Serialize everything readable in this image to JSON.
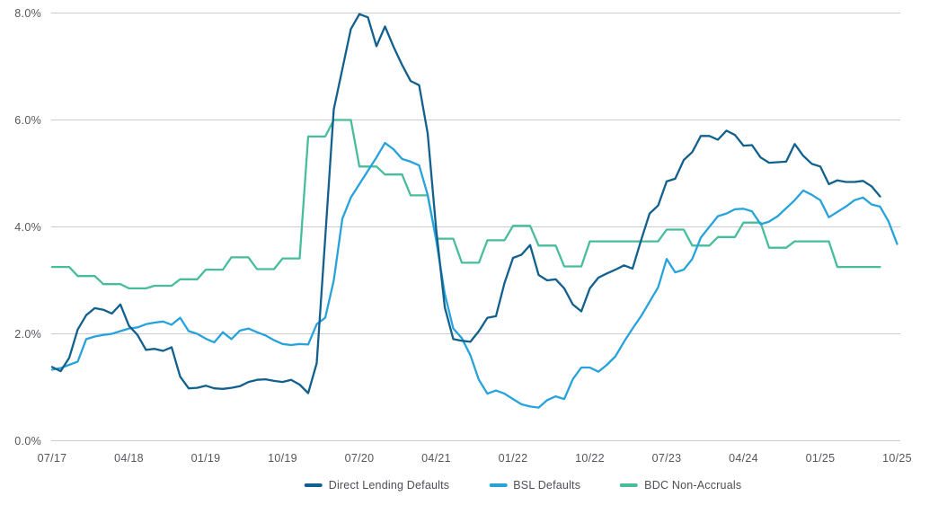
{
  "chart_data": {
    "type": "line",
    "title": "",
    "x_axis": {
      "start": "07/17",
      "end": "10/25",
      "frequency": "monthly",
      "n_points": 100,
      "tick_every": 9,
      "tick_labels": [
        "07/17",
        "04/18",
        "01/19",
        "10/19",
        "07/20",
        "04/21",
        "01/22",
        "10/22",
        "07/23",
        "04/24",
        "01/25",
        "10/25"
      ]
    },
    "y_axis": {
      "min": 0,
      "max": 8,
      "unit": "%",
      "tick_values": [
        0,
        2,
        4,
        6,
        8
      ],
      "tick_labels": [
        "0.0%",
        "2.0%",
        "4.0%",
        "6.0%",
        "8.0%"
      ]
    },
    "grid": "horizontal",
    "legend_position": "bottom",
    "series": [
      {
        "name": "Direct Lending Defaults",
        "color": "#11608d",
        "values": [
          1.38,
          1.3,
          1.55,
          2.08,
          2.35,
          2.48,
          2.45,
          2.38,
          2.55,
          2.15,
          1.98,
          1.7,
          1.72,
          1.68,
          1.75,
          1.2,
          0.98,
          0.99,
          1.03,
          0.98,
          0.97,
          0.99,
          1.02,
          1.1,
          1.14,
          1.15,
          1.12,
          1.1,
          1.14,
          1.05,
          0.89,
          1.45,
          3.8,
          6.2,
          6.95,
          7.7,
          7.98,
          7.92,
          7.38,
          7.75,
          7.37,
          7.03,
          6.73,
          6.65,
          5.75,
          3.95,
          2.5,
          1.9,
          1.87,
          1.85,
          2.05,
          2.3,
          2.33,
          2.95,
          3.42,
          3.48,
          3.66,
          3.1,
          3.0,
          3.02,
          2.85,
          2.55,
          2.42,
          2.85,
          3.05,
          3.13,
          3.2,
          3.28,
          3.22,
          3.75,
          4.25,
          4.4,
          4.85,
          4.9,
          5.25,
          5.4,
          5.7,
          5.7,
          5.63,
          5.8,
          5.72,
          5.52,
          5.53,
          5.3,
          5.2,
          5.21,
          5.22,
          5.55,
          5.33,
          5.18,
          5.13,
          4.8,
          4.87,
          4.84,
          4.84,
          4.86,
          4.76,
          4.57,
          null,
          null
        ]
      },
      {
        "name": "BSL Defaults",
        "color": "#27a3dc",
        "values": [
          1.33,
          1.36,
          1.42,
          1.48,
          1.9,
          1.95,
          1.98,
          2.0,
          2.05,
          2.1,
          2.12,
          2.18,
          2.21,
          2.23,
          2.17,
          2.3,
          2.05,
          2.0,
          1.91,
          1.84,
          2.03,
          1.9,
          2.06,
          2.1,
          2.03,
          1.97,
          1.88,
          1.81,
          1.79,
          1.81,
          1.8,
          2.18,
          2.3,
          3.0,
          4.15,
          4.55,
          4.8,
          5.05,
          5.3,
          5.57,
          5.45,
          5.27,
          5.22,
          5.15,
          4.6,
          3.75,
          2.75,
          2.1,
          1.92,
          1.6,
          1.14,
          0.88,
          0.94,
          0.88,
          0.78,
          0.68,
          0.64,
          0.62,
          0.76,
          0.83,
          0.78,
          1.15,
          1.37,
          1.37,
          1.29,
          1.42,
          1.58,
          1.85,
          2.1,
          2.33,
          2.6,
          2.87,
          3.4,
          3.15,
          3.2,
          3.4,
          3.8,
          4.0,
          4.2,
          4.25,
          4.33,
          4.34,
          4.29,
          4.05,
          4.1,
          4.2,
          4.35,
          4.5,
          4.68,
          4.6,
          4.5,
          4.18,
          4.28,
          4.38,
          4.5,
          4.55,
          4.42,
          4.38,
          4.1,
          3.68
        ]
      },
      {
        "name": "BDC Non-Accruals",
        "color": "#47bd9e",
        "values": [
          3.25,
          3.25,
          3.25,
          3.08,
          3.08,
          3.08,
          2.93,
          2.93,
          2.93,
          2.85,
          2.85,
          2.85,
          2.9,
          2.9,
          2.9,
          3.02,
          3.02,
          3.02,
          3.2,
          3.2,
          3.2,
          3.43,
          3.43,
          3.43,
          3.21,
          3.21,
          3.21,
          3.41,
          3.41,
          3.41,
          5.69,
          5.69,
          5.69,
          6.0,
          6.0,
          6.0,
          5.13,
          5.13,
          5.13,
          4.98,
          4.98,
          4.98,
          4.59,
          4.59,
          4.59,
          3.78,
          3.78,
          3.78,
          3.33,
          3.33,
          3.33,
          3.75,
          3.75,
          3.75,
          4.02,
          4.02,
          4.02,
          3.65,
          3.65,
          3.65,
          3.26,
          3.26,
          3.26,
          3.73,
          3.73,
          3.73,
          3.73,
          3.73,
          3.73,
          3.73,
          3.73,
          3.73,
          3.95,
          3.95,
          3.95,
          3.65,
          3.65,
          3.65,
          3.81,
          3.81,
          3.81,
          4.08,
          4.08,
          4.08,
          3.61,
          3.61,
          3.61,
          3.73,
          3.73,
          3.73,
          3.73,
          3.73,
          3.25,
          3.25,
          3.25,
          3.25,
          3.25,
          3.25,
          null,
          null
        ]
      }
    ],
    "colors": {
      "grid": "#cbcccd",
      "axis_text": "#55565a",
      "background": "#ffffff"
    }
  }
}
